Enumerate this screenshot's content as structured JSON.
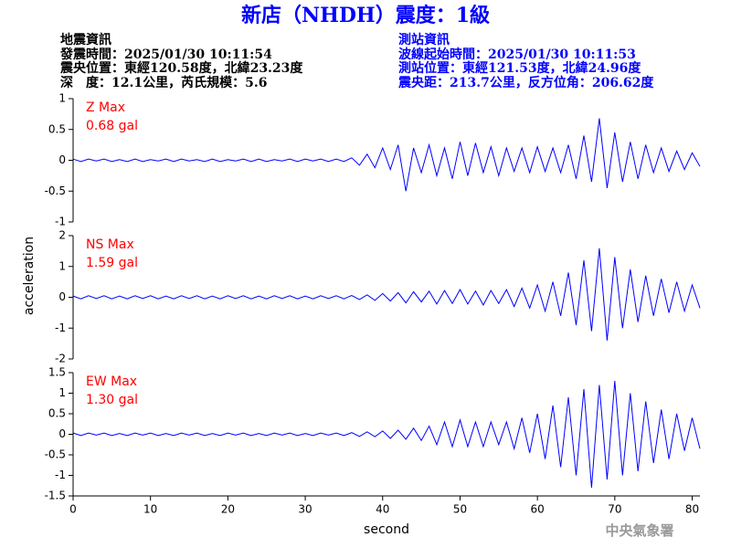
{
  "header": {
    "title": "新店（NHDH）震度：1級",
    "quake_info": [
      "地震資訊",
      "發震時間：2025/01/30 10:11:54",
      "震央位置：東經120.58度，北緯23.23度",
      "深　度：12.1公里，芮氏規模：5.6"
    ],
    "station_info": [
      "測站資訊",
      "波線起始時間：2025/01/30 10:11:53",
      "測站位置：東經121.53度，北緯24.96度",
      "震央距：213.7公里，反方位角：206.62度"
    ],
    "ylabel": "acceleration",
    "watermark": "中央氣象署"
  },
  "chart_data": [
    {
      "type": "line",
      "annotations": [
        "Z Max",
        "0.68 gal"
      ],
      "xlim": [
        0,
        81
      ],
      "ylim": [
        -1,
        1
      ],
      "yticks": [
        -1,
        -0.5,
        0,
        0.5,
        1
      ],
      "x": [
        0,
        1,
        2,
        3,
        4,
        5,
        6,
        7,
        8,
        9,
        10,
        11,
        12,
        13,
        14,
        15,
        16,
        17,
        18,
        19,
        20,
        21,
        22,
        23,
        24,
        25,
        26,
        27,
        28,
        29,
        30,
        31,
        32,
        33,
        34,
        35,
        36,
        37,
        38,
        39,
        40,
        41,
        42,
        43,
        44,
        45,
        46,
        47,
        48,
        49,
        50,
        51,
        52,
        53,
        54,
        55,
        56,
        57,
        58,
        59,
        60,
        61,
        62,
        63,
        64,
        65,
        66,
        67,
        68,
        69,
        70,
        71,
        72,
        73,
        74,
        75,
        76,
        77,
        78,
        79,
        80,
        81
      ],
      "series": [
        {
          "color": "#0000ff",
          "values": [
            0.02,
            -0.02,
            0.02,
            -0.01,
            0.02,
            -0.02,
            0.01,
            -0.02,
            0.02,
            -0.02,
            0.01,
            -0.01,
            0.02,
            -0.02,
            0.02,
            -0.01,
            0.01,
            -0.02,
            0.02,
            -0.02,
            0.01,
            -0.01,
            0.02,
            -0.02,
            0.02,
            -0.02,
            0.01,
            -0.01,
            0.02,
            -0.02,
            0.02,
            -0.01,
            0.02,
            -0.02,
            0.02,
            -0.02,
            0.04,
            -0.08,
            0.1,
            -0.12,
            0.2,
            -0.15,
            0.25,
            -0.5,
            0.2,
            -0.2,
            0.25,
            -0.25,
            0.2,
            -0.3,
            0.3,
            -0.25,
            0.28,
            -0.2,
            0.22,
            -0.25,
            0.2,
            -0.18,
            0.2,
            -0.2,
            0.22,
            -0.18,
            0.2,
            -0.2,
            0.25,
            -0.3,
            0.4,
            -0.35,
            0.68,
            -0.45,
            0.45,
            -0.35,
            0.3,
            -0.3,
            0.25,
            -0.2,
            0.2,
            -0.18,
            0.15,
            -0.15,
            0.12,
            -0.1
          ]
        }
      ]
    },
    {
      "type": "line",
      "annotations": [
        "NS Max",
        "1.59 gal"
      ],
      "xlim": [
        0,
        81
      ],
      "ylim": [
        -2,
        2
      ],
      "yticks": [
        -2,
        -1,
        0,
        1,
        2
      ],
      "x": [
        0,
        1,
        2,
        3,
        4,
        5,
        6,
        7,
        8,
        9,
        10,
        11,
        12,
        13,
        14,
        15,
        16,
        17,
        18,
        19,
        20,
        21,
        22,
        23,
        24,
        25,
        26,
        27,
        28,
        29,
        30,
        31,
        32,
        33,
        34,
        35,
        36,
        37,
        38,
        39,
        40,
        41,
        42,
        43,
        44,
        45,
        46,
        47,
        48,
        49,
        50,
        51,
        52,
        53,
        54,
        55,
        56,
        57,
        58,
        59,
        60,
        61,
        62,
        63,
        64,
        65,
        66,
        67,
        68,
        69,
        70,
        71,
        72,
        73,
        74,
        75,
        76,
        77,
        78,
        79,
        80,
        81
      ],
      "series": [
        {
          "color": "#0000ff",
          "values": [
            0.04,
            -0.05,
            0.05,
            -0.04,
            0.05,
            -0.05,
            0.04,
            -0.05,
            0.05,
            -0.04,
            0.05,
            -0.05,
            0.04,
            -0.05,
            0.05,
            -0.04,
            0.05,
            -0.05,
            0.04,
            -0.05,
            0.05,
            -0.04,
            0.05,
            -0.05,
            0.04,
            -0.05,
            0.05,
            -0.04,
            0.05,
            -0.05,
            0.04,
            -0.05,
            0.05,
            -0.04,
            0.05,
            -0.05,
            0.06,
            -0.07,
            0.08,
            -0.1,
            0.12,
            -0.12,
            0.15,
            -0.18,
            0.18,
            -0.15,
            0.2,
            -0.22,
            0.22,
            -0.2,
            0.25,
            -0.22,
            0.2,
            -0.25,
            0.22,
            -0.2,
            0.25,
            -0.3,
            0.3,
            -0.35,
            0.4,
            -0.45,
            0.5,
            -0.6,
            0.8,
            -0.9,
            1.2,
            -1.1,
            1.59,
            -1.4,
            1.3,
            -1.0,
            0.9,
            -0.8,
            0.7,
            -0.6,
            0.6,
            -0.5,
            0.5,
            -0.45,
            0.4,
            -0.35
          ]
        }
      ]
    },
    {
      "type": "line",
      "annotations": [
        "EW Max",
        "1.30 gal"
      ],
      "xlim": [
        0,
        81
      ],
      "ylim": [
        -1.5,
        1.5
      ],
      "yticks": [
        -1.5,
        -1,
        -0.5,
        0,
        0.5,
        1,
        1.5
      ],
      "x": [
        0,
        1,
        2,
        3,
        4,
        5,
        6,
        7,
        8,
        9,
        10,
        11,
        12,
        13,
        14,
        15,
        16,
        17,
        18,
        19,
        20,
        21,
        22,
        23,
        24,
        25,
        26,
        27,
        28,
        29,
        30,
        31,
        32,
        33,
        34,
        35,
        36,
        37,
        38,
        39,
        40,
        41,
        42,
        43,
        44,
        45,
        46,
        47,
        48,
        49,
        50,
        51,
        52,
        53,
        54,
        55,
        56,
        57,
        58,
        59,
        60,
        61,
        62,
        63,
        64,
        65,
        66,
        67,
        68,
        69,
        70,
        71,
        72,
        73,
        74,
        75,
        76,
        77,
        78,
        79,
        80,
        81
      ],
      "series": [
        {
          "color": "#0000ff",
          "values": [
            0.03,
            -0.03,
            0.03,
            -0.02,
            0.03,
            -0.03,
            0.02,
            -0.03,
            0.03,
            -0.02,
            0.03,
            -0.03,
            0.02,
            -0.03,
            0.03,
            -0.02,
            0.03,
            -0.03,
            0.02,
            -0.03,
            0.03,
            -0.02,
            0.03,
            -0.03,
            0.02,
            -0.03,
            0.03,
            -0.02,
            0.03,
            -0.03,
            0.02,
            -0.03,
            0.03,
            -0.02,
            0.03,
            -0.03,
            0.04,
            -0.05,
            0.06,
            -0.06,
            0.08,
            -0.1,
            0.1,
            -0.12,
            0.15,
            -0.15,
            0.2,
            -0.25,
            0.3,
            -0.3,
            0.35,
            -0.3,
            0.3,
            -0.3,
            0.3,
            -0.25,
            0.3,
            -0.35,
            0.4,
            -0.45,
            0.5,
            -0.6,
            0.7,
            -0.8,
            0.9,
            -1.0,
            1.1,
            -1.3,
            1.2,
            -1.1,
            1.3,
            -1.0,
            1.0,
            -0.9,
            0.8,
            -0.7,
            0.6,
            -0.6,
            0.5,
            -0.4,
            0.4,
            -0.35
          ]
        }
      ],
      "xlabel": "second",
      "xticks": [
        0,
        10,
        20,
        30,
        40,
        50,
        60,
        70,
        80
      ]
    }
  ]
}
